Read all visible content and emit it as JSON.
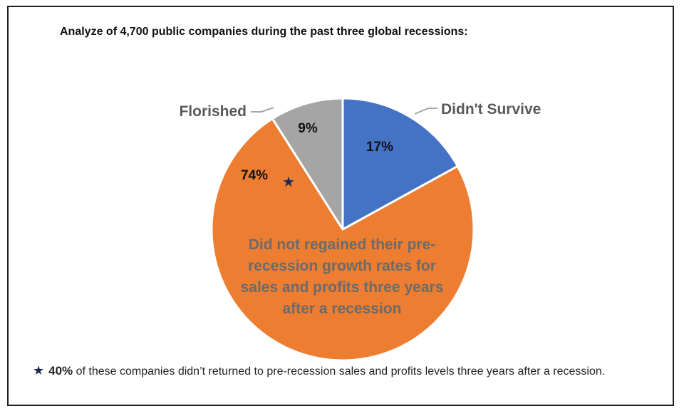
{
  "title": "Analyze of 4,700 public companies during the past three global recessions:",
  "chart_data": {
    "type": "pie",
    "slices": [
      {
        "label": "Didn't Survive",
        "value": 17,
        "display": "17%",
        "color": "#4472C4"
      },
      {
        "label": "Did not regained their pre-recession growth rates for sales and profits three years after a recession",
        "value": 74,
        "display": "74%",
        "color": "#ED7D31"
      },
      {
        "label": "Florished",
        "value": 9,
        "display": "9%",
        "color": "#A5A5A5"
      }
    ],
    "orange_label_lines": [
      "Did not regained their pre-",
      "recession growth rates for",
      "sales and profits three years",
      "after a recession"
    ]
  },
  "footnote": {
    "marker": "★",
    "bold": "40%",
    "text": " of these companies didn’t returned to pre-recession sales and profits levels three years after a recession."
  }
}
